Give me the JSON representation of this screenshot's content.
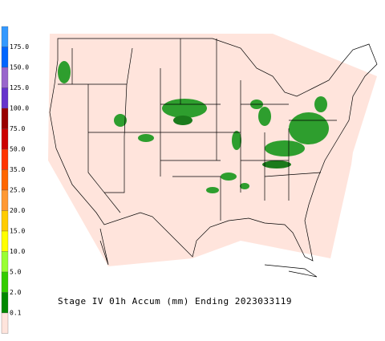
{
  "caption": "Stage IV 01h Accum (mm) Ending 2023033119",
  "colorbar": {
    "labels": [
      "175.0",
      "150.0",
      "125.0",
      "100.0",
      "75.0",
      "50.0",
      "35.0",
      "25.0",
      "20.0",
      "15.0",
      "10.0",
      "5.0",
      "2.0",
      "0.1"
    ],
    "colors": [
      "#3399ff",
      "#0066ff",
      "#9966cc",
      "#6633cc",
      "#990000",
      "#cc0000",
      "#ff3300",
      "#ff6600",
      "#ff9933",
      "#ffcc00",
      "#ffff00",
      "#99ff33",
      "#33cc00",
      "#008800",
      "#ffe4dc"
    ]
  }
}
